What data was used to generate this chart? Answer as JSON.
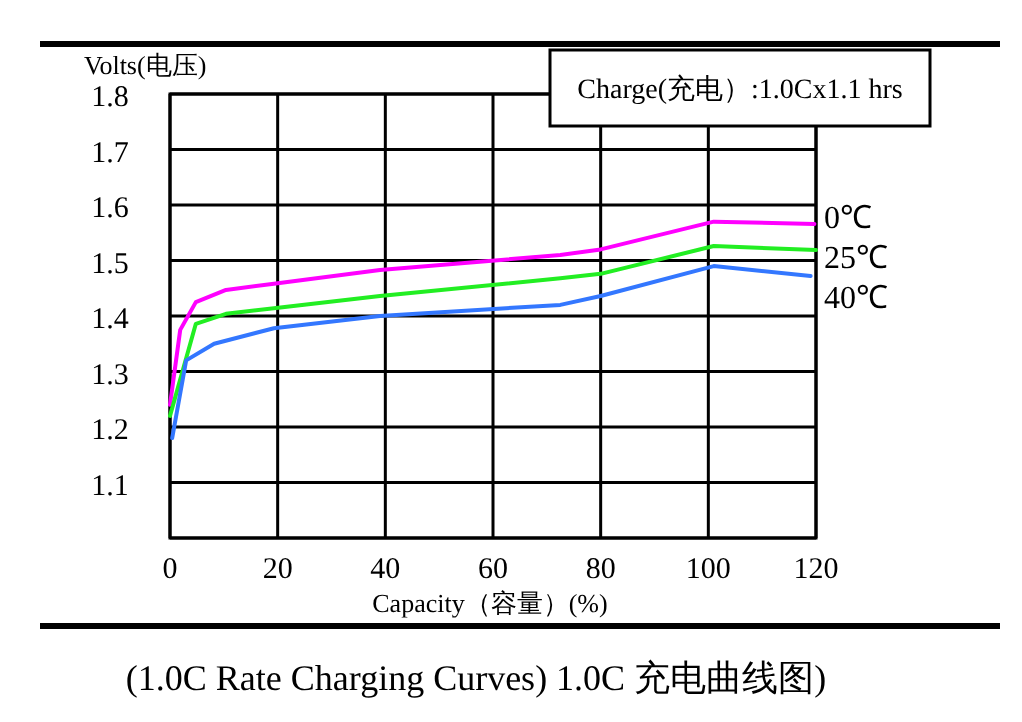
{
  "chart_data": {
    "type": "line",
    "title": "(1.0C Rate Charging Curves) 1.0C 充电曲线图)",
    "xlabel": "Capacity（容量）(%)",
    "ylabel": "Volts(电压)",
    "annotations": [
      "Charge(充电）:1.0Cx1.1 hrs"
    ],
    "xlim": [
      0,
      120
    ],
    "xticks": [
      0,
      20,
      40,
      60,
      80,
      100,
      120
    ],
    "ylim": [
      1.0,
      1.8
    ],
    "yticks": [
      {
        "value": 1.0,
        "label": null
      },
      1.1,
      1.2,
      1.3,
      1.4,
      1.5,
      1.6,
      1.7,
      1.8
    ],
    "grid": true,
    "marker": "none",
    "line_style": "solid",
    "series": [
      {
        "name": "0℃",
        "color": "#ff00ff",
        "x": [
          0,
          1.9,
          4.8,
          10.4,
          19.3,
          39,
          72.5,
          80,
          101,
          119.7
        ],
        "values": [
          1.24,
          1.375,
          1.425,
          1.447,
          1.458,
          1.483,
          1.51,
          1.52,
          1.57,
          1.566
        ]
      },
      {
        "name": "25℃",
        "color": "#22ee22",
        "x": [
          0,
          4.8,
          10.4,
          19.3,
          39,
          72.5,
          80,
          101,
          120
        ],
        "values": [
          1.22,
          1.386,
          1.404,
          1.414,
          1.436,
          1.468,
          1.476,
          1.526,
          1.519
        ]
      },
      {
        "name": "40℃",
        "color": "#3377ff",
        "x": [
          0.4,
          3,
          8.2,
          19.3,
          39,
          72.5,
          80,
          101,
          119
        ],
        "values": [
          1.18,
          1.32,
          1.35,
          1.378,
          1.4,
          1.42,
          1.436,
          1.49,
          1.472
        ]
      }
    ]
  }
}
